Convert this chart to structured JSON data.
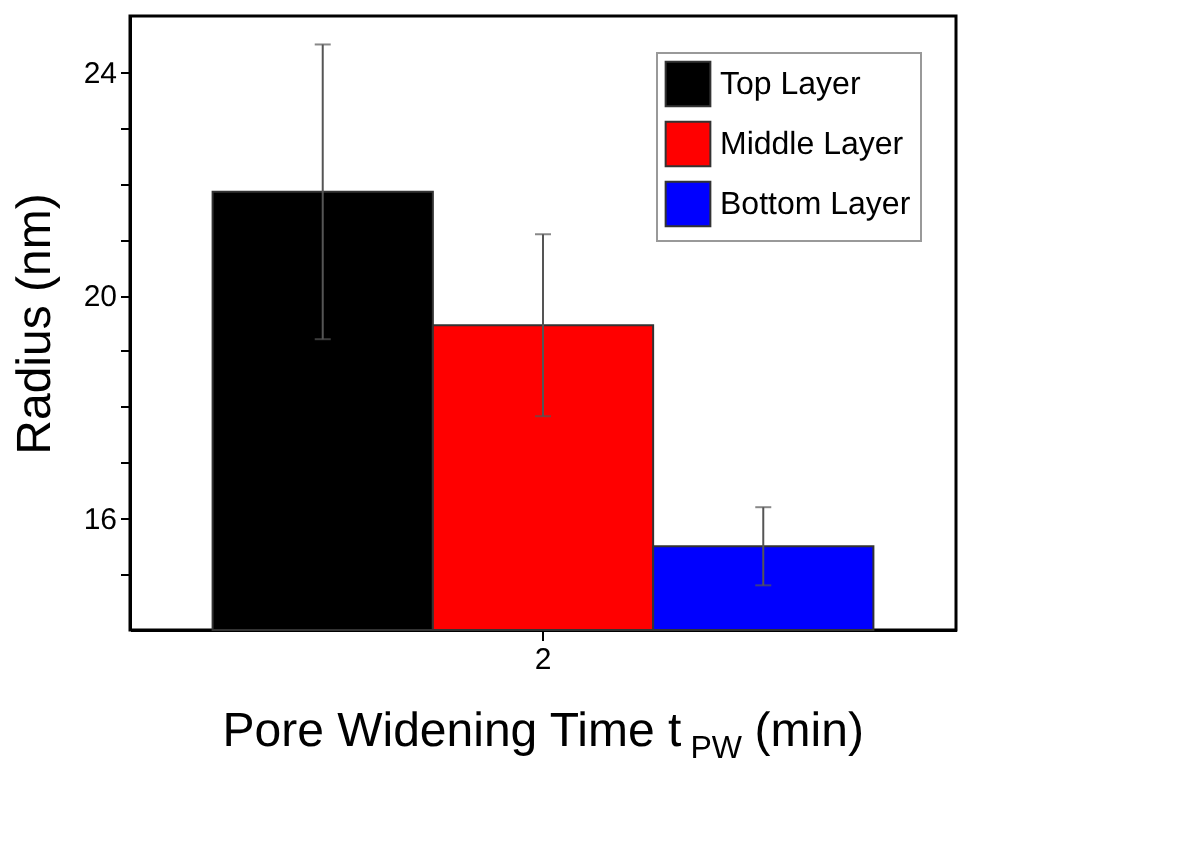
{
  "chart_data": {
    "type": "bar",
    "xlabel": "Pore Widening Time t$_{PW}$ (min)",
    "ylabel": "Radius (nm)",
    "categories": [
      "2"
    ],
    "series": [
      {
        "name": "Top Layer",
        "color": "#000000",
        "values": [
          21.85
        ],
        "errors": [
          2.64
        ]
      },
      {
        "name": "Middle Layer",
        "color": "#ff0000",
        "values": [
          19.46
        ],
        "errors": [
          1.63
        ]
      },
      {
        "name": "Bottom Layer",
        "color": "#0000ff",
        "values": [
          15.5
        ],
        "errors": [
          0.7
        ]
      }
    ],
    "ylim": [
      14,
      25
    ],
    "yticks": [
      {
        "value": 15,
        "label": null
      },
      16,
      {
        "value": 17,
        "label": null
      },
      {
        "value": 18,
        "label": null
      },
      {
        "value": 19,
        "label": null
      },
      20,
      {
        "value": 21,
        "label": null
      },
      {
        "value": 22,
        "label": null
      },
      {
        "value": 23,
        "label": null
      },
      24
    ],
    "grid": false,
    "legend": "top right"
  }
}
